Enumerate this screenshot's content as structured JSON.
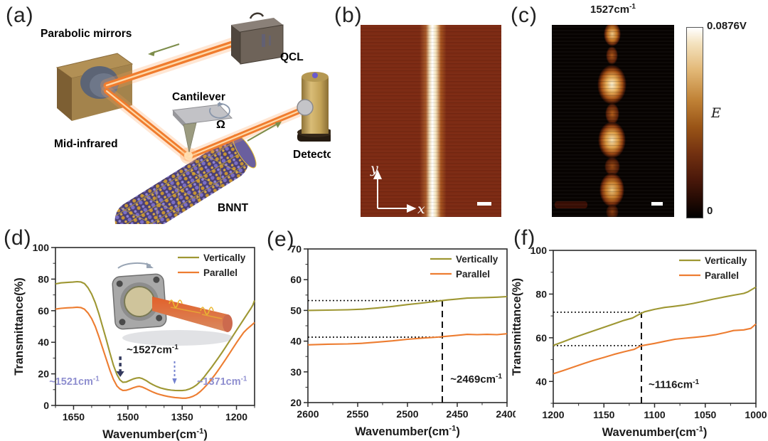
{
  "panel_a": {
    "label": "(a)",
    "parabolic_mirrors": "Parabolic mirrors",
    "qcl": "QCL",
    "cantilever": "Cantilever",
    "omega": "Ω",
    "mid_infrared": "Mid-infrared",
    "detector": "Detector",
    "bnnt": "BNNT"
  },
  "panel_b": {
    "label": "(b)",
    "x_axis": "x",
    "y_axis": "y"
  },
  "panel_c": {
    "label": "(c)",
    "title_base": "1527cm",
    "title_sup": "-1",
    "colorbar_max": "0.0876V",
    "colorbar_symbol": "E",
    "colorbar_min": "0"
  },
  "colors": {
    "vertically": "#9e9733",
    "parallel": "#ed7d31",
    "purple_annotation": "#8f8fd0",
    "dark_arrow": "#343a5e",
    "blue_arrow": "#7280cf",
    "beam_orange": "#f07c2e",
    "afm_background": "#7c2a13"
  },
  "chart_data": [
    {
      "id": "d",
      "panel_label": "(d)",
      "type": "line",
      "xlabel": "Wavenumber(cm⁻¹)",
      "ylabel": "Transmittance(%)",
      "xlim": [
        1700,
        1150
      ],
      "ylim": [
        0,
        100
      ],
      "xticks": [
        1650,
        1500,
        1350,
        1200
      ],
      "yticks": [
        0,
        20,
        40,
        60,
        80,
        100
      ],
      "xminor": 50,
      "yminor": 10,
      "grid": false,
      "legend_position": "top-right",
      "series": [
        {
          "name": "Vertically",
          "color": "#9e9733",
          "points": [
            [
              1700,
              77
            ],
            [
              1685,
              77.6
            ],
            [
              1668,
              77.9
            ],
            [
              1652,
              78.1
            ],
            [
              1640,
              78.4
            ],
            [
              1630,
              78.2
            ],
            [
              1620,
              77.2
            ],
            [
              1610,
              74.5
            ],
            [
              1600,
              70.5
            ],
            [
              1590,
              65
            ],
            [
              1580,
              58
            ],
            [
              1570,
              50
            ],
            [
              1560,
              42
            ],
            [
              1550,
              33.5
            ],
            [
              1540,
              25.5
            ],
            [
              1530,
              19.5
            ],
            [
              1522,
              16.2
            ],
            [
              1514,
              14.7
            ],
            [
              1505,
              14.8
            ],
            [
              1495,
              15.8
            ],
            [
              1485,
              16.8
            ],
            [
              1475,
              17.4
            ],
            [
              1468,
              17.5
            ],
            [
              1460,
              17
            ],
            [
              1450,
              15.8
            ],
            [
              1440,
              14.3
            ],
            [
              1430,
              13
            ],
            [
              1420,
              12
            ],
            [
              1410,
              11.1
            ],
            [
              1400,
              10.5
            ],
            [
              1390,
              10
            ],
            [
              1380,
              9.7
            ],
            [
              1370,
              9.5
            ],
            [
              1360,
              9.4
            ],
            [
              1350,
              9.4
            ],
            [
              1340,
              9.7
            ],
            [
              1330,
              10.4
            ],
            [
              1320,
              11.5
            ],
            [
              1310,
              13
            ],
            [
              1300,
              15.2
            ],
            [
              1290,
              17.8
            ],
            [
              1280,
              20.8
            ],
            [
              1270,
              23.8
            ],
            [
              1260,
              27
            ],
            [
              1250,
              30.2
            ],
            [
              1240,
              33.5
            ],
            [
              1230,
              37
            ],
            [
              1220,
              40.5
            ],
            [
              1210,
              44
            ],
            [
              1200,
              47.5
            ],
            [
              1190,
              51
            ],
            [
              1180,
              54.5
            ],
            [
              1170,
              58
            ],
            [
              1160,
              61.5
            ],
            [
              1155,
              63.5
            ],
            [
              1150,
              66.5
            ]
          ]
        },
        {
          "name": "Parallel",
          "color": "#ed7d31",
          "points": [
            [
              1700,
              61
            ],
            [
              1685,
              61.5
            ],
            [
              1668,
              61.8
            ],
            [
              1652,
              62
            ],
            [
              1640,
              62.2
            ],
            [
              1630,
              62
            ],
            [
              1620,
              61
            ],
            [
              1610,
              58.5
            ],
            [
              1600,
              55
            ],
            [
              1590,
              50
            ],
            [
              1580,
              43.5
            ],
            [
              1570,
              36.5
            ],
            [
              1560,
              29.5
            ],
            [
              1550,
              22.5
            ],
            [
              1540,
              16.5
            ],
            [
              1530,
              12.3
            ],
            [
              1522,
              10.5
            ],
            [
              1514,
              9.5
            ],
            [
              1505,
              9.6
            ],
            [
              1495,
              10.3
            ],
            [
              1485,
              11.2
            ],
            [
              1475,
              11.9
            ],
            [
              1468,
              12.1
            ],
            [
              1460,
              11.6
            ],
            [
              1450,
              10.6
            ],
            [
              1440,
              9.4
            ],
            [
              1430,
              8.4
            ],
            [
              1420,
              7.5
            ],
            [
              1410,
              6.8
            ],
            [
              1400,
              6.2
            ],
            [
              1390,
              5.7
            ],
            [
              1380,
              5.3
            ],
            [
              1370,
              5
            ],
            [
              1360,
              4.8
            ],
            [
              1350,
              4.6
            ],
            [
              1340,
              4.6
            ],
            [
              1330,
              5
            ],
            [
              1320,
              5.8
            ],
            [
              1310,
              7
            ],
            [
              1300,
              8.8
            ],
            [
              1290,
              11
            ],
            [
              1280,
              13.5
            ],
            [
              1270,
              16.3
            ],
            [
              1260,
              19.3
            ],
            [
              1250,
              22.5
            ],
            [
              1240,
              25.8
            ],
            [
              1230,
              29.2
            ],
            [
              1220,
              32.7
            ],
            [
              1210,
              36.2
            ],
            [
              1200,
              39.7
            ],
            [
              1190,
              43
            ],
            [
              1180,
              46.2
            ],
            [
              1170,
              48.5
            ],
            [
              1160,
              50.5
            ],
            [
              1150,
              52.5
            ]
          ]
        }
      ],
      "annotations": [
        {
          "text": "~1527cm⁻¹",
          "x": 1432,
          "y": 33,
          "color": "#1a1a1a",
          "size": 15,
          "anchor": "middle"
        },
        {
          "text": "~1521cm⁻¹",
          "x": 1648,
          "y": 13,
          "color": "#8f8fd0",
          "size": 14.5,
          "anchor": "middle"
        },
        {
          "text": "~1371cm⁻¹",
          "x": 1240,
          "y": 13,
          "color": "#8f8fd0",
          "size": 14.5,
          "anchor": "middle"
        }
      ],
      "arrows": [
        {
          "x": 1521,
          "y1": 31,
          "y2": 18,
          "color": "#343a5e",
          "w": 3.5,
          "dash": "5,4"
        },
        {
          "x": 1371,
          "y1": 28,
          "y2": 13.5,
          "color": "#7280cf",
          "w": 2,
          "dash": "3,3"
        }
      ],
      "guides": []
    },
    {
      "id": "e",
      "panel_label": "(e)",
      "type": "line",
      "xlabel": "Wavenumber(cm⁻¹)",
      "ylabel": "",
      "xlim": [
        2600,
        2400
      ],
      "ylim": [
        20,
        70
      ],
      "xticks": [
        2600,
        2550,
        2500,
        2450,
        2400
      ],
      "yticks": [
        20,
        30,
        40,
        50,
        60,
        70
      ],
      "xminor": 25,
      "yminor": 5,
      "grid": false,
      "legend_position": "top-right",
      "series": [
        {
          "name": "Vertically",
          "color": "#9e9733",
          "points": [
            [
              2600,
              50
            ],
            [
              2580,
              50.1
            ],
            [
              2560,
              50.2
            ],
            [
              2545,
              50.4
            ],
            [
              2530,
              50.8
            ],
            [
              2515,
              51.3
            ],
            [
              2500,
              51.9
            ],
            [
              2485,
              52.4
            ],
            [
              2470,
              53
            ],
            [
              2460,
              53.4
            ],
            [
              2450,
              53.7
            ],
            [
              2440,
              54
            ],
            [
              2430,
              54.1
            ],
            [
              2420,
              54.2
            ],
            [
              2410,
              54.3
            ],
            [
              2400,
              54.5
            ]
          ]
        },
        {
          "name": "Parallel",
          "color": "#ed7d31",
          "points": [
            [
              2600,
              38.8
            ],
            [
              2580,
              39
            ],
            [
              2560,
              39.1
            ],
            [
              2545,
              39.3
            ],
            [
              2530,
              39.7
            ],
            [
              2515,
              40.1
            ],
            [
              2500,
              40.6
            ],
            [
              2485,
              41
            ],
            [
              2470,
              41.3
            ],
            [
              2460,
              41.6
            ],
            [
              2450,
              41.9
            ],
            [
              2440,
              42.2
            ],
            [
              2430,
              42.1
            ],
            [
              2420,
              42.2
            ],
            [
              2410,
              42.1
            ],
            [
              2400,
              42.4
            ]
          ]
        }
      ],
      "annotations": [
        {
          "text": "~2469cm⁻¹",
          "x": 2457,
          "y": 26.5,
          "color": "#1a1a1a",
          "size": 15,
          "anchor": "start"
        }
      ],
      "arrows": [],
      "guides": [
        {
          "t": "h",
          "y": 53.2,
          "x1": 2600,
          "x2": 2465
        },
        {
          "t": "h",
          "y": 41.3,
          "x1": 2600,
          "x2": 2465
        },
        {
          "t": "v",
          "x": 2465,
          "y1": 20,
          "y2": 53.2
        }
      ]
    },
    {
      "id": "f",
      "panel_label": "(f)",
      "type": "line",
      "xlabel": "Wavenumber(cm⁻¹)",
      "ylabel": "Transmittance(%)",
      "xlim": [
        1200,
        1000
      ],
      "ylim": [
        30,
        100
      ],
      "xticks": [
        1200,
        1150,
        1100,
        1050,
        1000
      ],
      "yticks": [
        40,
        60,
        80,
        100
      ],
      "xminor": 25,
      "yminor": 10,
      "grid": false,
      "legend_position": "top-right",
      "series": [
        {
          "name": "Vertically",
          "color": "#9e9733",
          "points": [
            [
              1200,
              56.5
            ],
            [
              1190,
              58.2
            ],
            [
              1180,
              60
            ],
            [
              1170,
              61.6
            ],
            [
              1160,
              63.2
            ],
            [
              1150,
              64.8
            ],
            [
              1140,
              66.4
            ],
            [
              1130,
              68
            ],
            [
              1122,
              69
            ],
            [
              1116,
              70.5
            ],
            [
              1110,
              71.9
            ],
            [
              1100,
              73
            ],
            [
              1090,
              73.9
            ],
            [
              1082,
              74.3
            ],
            [
              1072,
              74.9
            ],
            [
              1062,
              75.7
            ],
            [
              1052,
              76.7
            ],
            [
              1042,
              77.7
            ],
            [
              1032,
              78.6
            ],
            [
              1022,
              79.5
            ],
            [
              1012,
              80.3
            ],
            [
              1008,
              81
            ],
            [
              1000,
              83.2
            ]
          ]
        },
        {
          "name": "Parallel",
          "color": "#ed7d31",
          "points": [
            [
              1200,
              43.5
            ],
            [
              1190,
              45
            ],
            [
              1180,
              46.6
            ],
            [
              1170,
              48.2
            ],
            [
              1160,
              49.7
            ],
            [
              1150,
              51
            ],
            [
              1140,
              52.4
            ],
            [
              1130,
              53.6
            ],
            [
              1120,
              54.7
            ],
            [
              1114,
              56.2
            ],
            [
              1110,
              56.6
            ],
            [
              1100,
              57.4
            ],
            [
              1090,
              58.4
            ],
            [
              1080,
              59.3
            ],
            [
              1070,
              59.8
            ],
            [
              1060,
              60.2
            ],
            [
              1050,
              60.7
            ],
            [
              1040,
              61.4
            ],
            [
              1030,
              62.4
            ],
            [
              1022,
              63.3
            ],
            [
              1012,
              63.6
            ],
            [
              1005,
              64.3
            ],
            [
              1000,
              66.3
            ]
          ]
        }
      ],
      "annotations": [
        {
          "text": "~1116cm⁻¹",
          "x": 1106,
          "y": 37,
          "color": "#1a1a1a",
          "size": 15,
          "anchor": "start"
        }
      ],
      "arrows": [],
      "guides": [
        {
          "t": "h",
          "y": 71.7,
          "x1": 1200,
          "x2": 1113
        },
        {
          "t": "h",
          "y": 56.4,
          "x1": 1200,
          "x2": 1113
        },
        {
          "t": "v",
          "x": 1113,
          "y1": 30,
          "y2": 71.7
        }
      ]
    }
  ]
}
